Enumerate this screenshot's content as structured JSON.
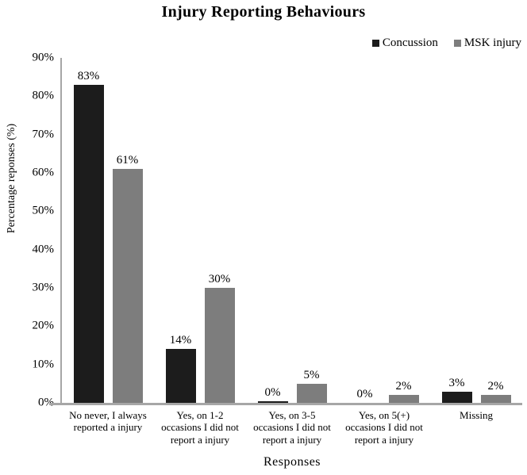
{
  "chart_data": {
    "type": "bar",
    "title": "Injury Reporting Behaviours",
    "xlabel": "Responses",
    "ylabel": "Percentage reponses (%)",
    "ylim": [
      0,
      90
    ],
    "grid": false,
    "legend_position": "top-right",
    "yticks": {
      "values": [
        0,
        10,
        20,
        30,
        40,
        50,
        60,
        70,
        80,
        90
      ],
      "labels": [
        "0%",
        "10%",
        "20%",
        "30%",
        "40%",
        "50%",
        "60%",
        "70%",
        "80%",
        "90%"
      ]
    },
    "categories": [
      "No never, I always\nreported a injury",
      "Yes, on 1-2\noccasions I did not\nreport a injury",
      "Yes, on 3-5\noccasions I did not\nreport a injury",
      "Yes, on 5(+)\noccasions I did not\nreport a injury",
      "Missing"
    ],
    "series": [
      {
        "name": "Concussion",
        "color": "#1c1c1c",
        "values": [
          83,
          14,
          0.4,
          0,
          3
        ],
        "labels": [
          "83%",
          "14%",
          "0%",
          "0%",
          "3%"
        ]
      },
      {
        "name": "MSK injury",
        "color": "#7d7d7d",
        "values": [
          61,
          30,
          5,
          2,
          2
        ],
        "labels": [
          "61%",
          "30%",
          "5%",
          "2%",
          "2%"
        ]
      }
    ],
    "axis_line_color": "#a6a6a6"
  }
}
